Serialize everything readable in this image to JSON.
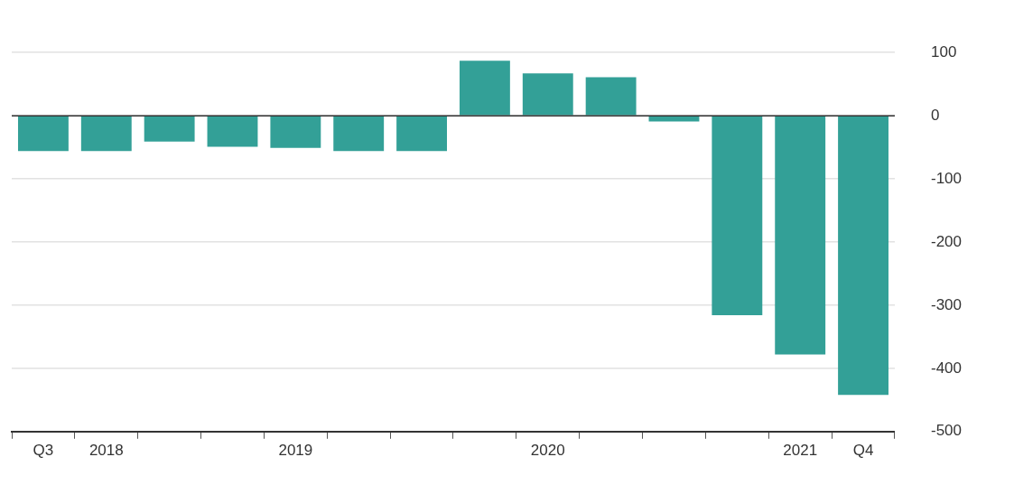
{
  "chart_data": {
    "type": "bar",
    "categories": [
      "Q3",
      "2018",
      null,
      null,
      "2019",
      null,
      null,
      null,
      "2020",
      null,
      null,
      null,
      "2021",
      "Q4"
    ],
    "values": [
      -56,
      -56,
      -41,
      -49,
      -51,
      -56,
      -56,
      87,
      67,
      61,
      -9,
      -316,
      -378,
      -442
    ],
    "color": "#33a097",
    "ylim": [
      -500,
      100
    ],
    "yticks": [
      -500,
      -400,
      -300,
      -200,
      -100,
      0,
      100
    ],
    "grid": "y",
    "ref_lines": [
      {
        "axis": "y",
        "value": 0,
        "color": "#333333"
      }
    ]
  }
}
